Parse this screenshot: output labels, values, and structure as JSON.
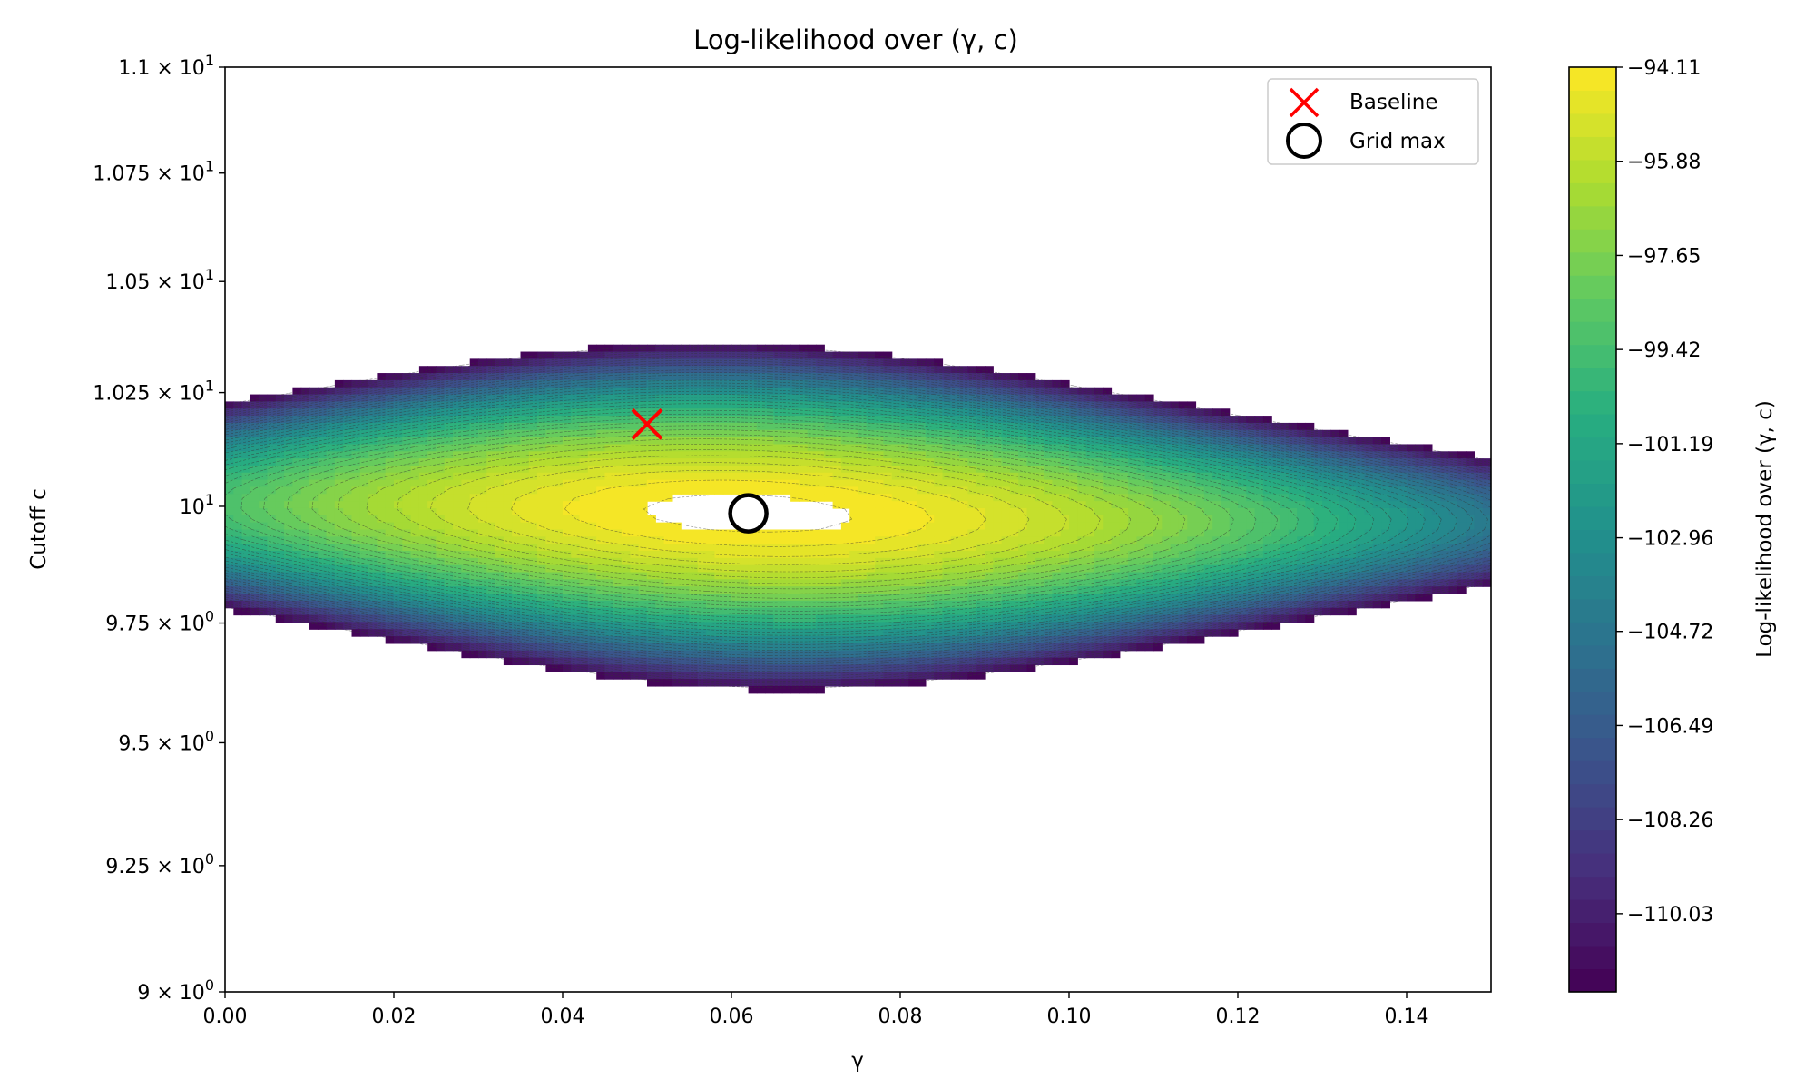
{
  "chart_data": {
    "type": "contour",
    "title": "Log-likelihood over (γ, c)",
    "xlabel": "γ",
    "ylabel": "Cutoff c",
    "xlim": [
      0.0,
      0.15
    ],
    "ylim": [
      9.0,
      11.0
    ],
    "yscale": "log",
    "x_ticks": [
      {
        "value": 0.0,
        "label": "0.00"
      },
      {
        "value": 0.02,
        "label": "0.02"
      },
      {
        "value": 0.04,
        "label": "0.04"
      },
      {
        "value": 0.06,
        "label": "0.06"
      },
      {
        "value": 0.08,
        "label": "0.08"
      },
      {
        "value": 0.1,
        "label": "0.10"
      },
      {
        "value": 0.12,
        "label": "0.12"
      },
      {
        "value": 0.14,
        "label": "0.14"
      }
    ],
    "y_ticks": [
      {
        "value": 11.0,
        "mant": "1.1",
        "exp": "1"
      },
      {
        "value": 10.75,
        "mant": "1.075",
        "exp": "1"
      },
      {
        "value": 10.5,
        "mant": "1.05",
        "exp": "1"
      },
      {
        "value": 10.25,
        "mant": "1.025",
        "exp": "1"
      },
      {
        "value": 10.0,
        "mant": "",
        "exp": "1"
      },
      {
        "value": 9.75,
        "mant": "9.75",
        "exp": "0"
      },
      {
        "value": 9.5,
        "mant": "9.5",
        "exp": "0"
      },
      {
        "value": 9.25,
        "mant": "9.25",
        "exp": "0"
      },
      {
        "value": 9.0,
        "mant": "9",
        "exp": "0"
      }
    ],
    "colorbar": {
      "label": "Log-likelihood over (γ, c)",
      "colormap": "viridis",
      "vmin": -111.5,
      "vmax": -94.11,
      "ticks": [
        {
          "value": -94.11,
          "label": "−94.11"
        },
        {
          "value": -95.88,
          "label": "−95.88"
        },
        {
          "value": -97.65,
          "label": "−97.65"
        },
        {
          "value": -99.42,
          "label": "−99.42"
        },
        {
          "value": -101.19,
          "label": "−101.19"
        },
        {
          "value": -102.96,
          "label": "−102.96"
        },
        {
          "value": -104.72,
          "label": "−104.72"
        },
        {
          "value": -106.49,
          "label": "−106.49"
        },
        {
          "value": -108.26,
          "label": "−108.26"
        },
        {
          "value": -110.03,
          "label": "−110.03"
        }
      ]
    },
    "surface_peak": {
      "gamma": 0.062,
      "c": 9.985,
      "value": -93.9
    },
    "markers": [
      {
        "name": "Baseline",
        "gamma": 0.05,
        "c": 10.18,
        "symbol": "x",
        "color": "#ff0000"
      },
      {
        "name": "Grid max",
        "gamma": 0.062,
        "c": 9.985,
        "symbol": "circle",
        "color": "#000000"
      }
    ],
    "legend": {
      "position": "top-right"
    }
  }
}
